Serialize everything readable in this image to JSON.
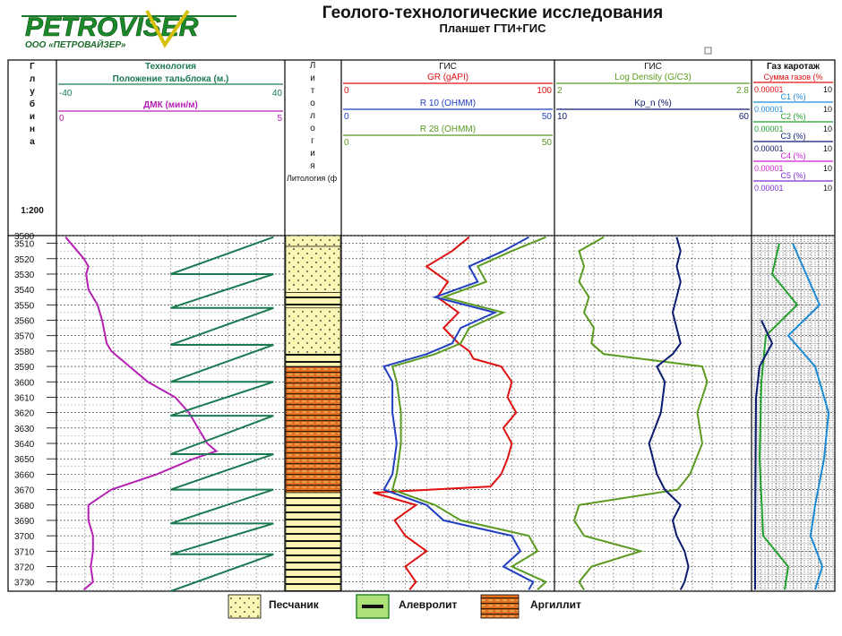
{
  "header": {
    "logo_text": "PETROVISER",
    "logo_sub": "ООО «ПЕТРОВАЙЗЕР»",
    "title": "Геолого-технологические исследования",
    "subtitle": "Планшет ГТИ+ГИС"
  },
  "columns": {
    "depth": {
      "letters": [
        "Г",
        "л",
        "у",
        "б",
        "и",
        "н",
        "а"
      ],
      "scale": "1:200"
    },
    "tech": {
      "group": "Технология",
      "curves": [
        {
          "name": "Положение тальблока (м.)",
          "min": "-40",
          "max": "40",
          "color": "#1b7a52"
        },
        {
          "name": "ДМК (мин/м)",
          "min": "0",
          "max": "5",
          "color": "#b320b3"
        }
      ]
    },
    "lith": {
      "letters": [
        "Л",
        "и",
        "т",
        "о",
        "л",
        "о",
        "г",
        "и",
        "я"
      ],
      "label": "Литология (ф"
    },
    "gis1": {
      "group": "ГИС",
      "curves": [
        {
          "name": "GR (gAPI)",
          "min": "0",
          "max": "100",
          "color": "#e01010"
        },
        {
          "name": "R 10 (OHMM)",
          "min": "0",
          "max": "50",
          "color": "#1f3fbf"
        },
        {
          "name": "R 28 (OHMM)",
          "min": "0",
          "max": "50",
          "color": "#5a9a20"
        }
      ]
    },
    "gis2": {
      "group": "ГИС",
      "curves": [
        {
          "name": "Log Density (G/C3)",
          "min": "2",
          "max": "2.8",
          "color": "#5a9a20"
        },
        {
          "name": "Kp_n (%)",
          "min": "10",
          "max": "60",
          "color": "#0a1a6e"
        }
      ]
    },
    "gas": {
      "group": "Газ каротаж",
      "curves": [
        {
          "name": "Сумма газов (%",
          "min": "0.00001",
          "max": "10",
          "color": "#e01010"
        },
        {
          "name": "C1 (%)",
          "min": "0.00001",
          "max": "10",
          "color": "#1a8ad6"
        },
        {
          "name": "C2 (%)",
          "min": "0.00001",
          "max": "10",
          "color": "#23a02d"
        },
        {
          "name": "C3 (%)",
          "min": "0.00001",
          "max": "10",
          "color": "#0a1a6e"
        },
        {
          "name": "C4 (%)",
          "min": "0.00001",
          "max": "10",
          "color": "#d01fd0"
        },
        {
          "name": "C5 (%)",
          "min": "0.00001",
          "max": "10",
          "color": "#7a2bd0"
        }
      ]
    }
  },
  "legend": [
    {
      "label": "Песчаник",
      "key": "sand"
    },
    {
      "label": "Алевролит",
      "key": "silt"
    },
    {
      "label": "Аргиллит",
      "key": "argil"
    }
  ],
  "chart_data": {
    "type": "line",
    "depth_range": [
      3505,
      3736
    ],
    "depth_ticks": [
      3510,
      3520,
      3530,
      3540,
      3550,
      3560,
      3570,
      3580,
      3590,
      3600,
      3610,
      3620,
      3630,
      3640,
      3650,
      3660,
      3670,
      3680,
      3690,
      3700,
      3710,
      3720,
      3730
    ],
    "lithology": [
      {
        "top": 3505,
        "bottom": 3512,
        "rock": "sand"
      },
      {
        "top": 3512,
        "bottom": 3542,
        "rock": "sand"
      },
      {
        "top": 3542,
        "bottom": 3552,
        "rock": "silt"
      },
      {
        "top": 3552,
        "bottom": 3582,
        "rock": "sand"
      },
      {
        "top": 3582,
        "bottom": 3590,
        "rock": "silt"
      },
      {
        "top": 3590,
        "bottom": 3672,
        "rock": "argil"
      },
      {
        "top": 3672,
        "bottom": 3736,
        "rock": "silt"
      }
    ],
    "series": [
      {
        "name": "ДМК (мин/м)",
        "track": "tech",
        "scale": [
          0,
          5
        ],
        "x": [
          3506,
          3520,
          3525,
          3530,
          3540,
          3550,
          3560,
          3575,
          3580,
          3590,
          3600,
          3610,
          3620,
          3630,
          3640,
          3645,
          3650,
          3660,
          3670,
          3680,
          3690,
          3700,
          3710,
          3720,
          3730,
          3735
        ],
        "y": [
          0.2,
          0.6,
          0.7,
          0.65,
          0.7,
          0.9,
          1.0,
          1.1,
          1.2,
          1.6,
          2.0,
          2.6,
          2.9,
          3.1,
          3.3,
          3.5,
          3.0,
          2.2,
          1.2,
          0.7,
          0.7,
          0.8,
          0.8,
          0.75,
          0.8,
          0.6
        ]
      },
      {
        "name": "Положение тальблока (м.)",
        "track": "tech",
        "scale": [
          -40,
          40
        ],
        "x": [
          3506,
          3530,
          3530,
          3552,
          3552,
          3576,
          3576,
          3600,
          3600,
          3622,
          3622,
          3647,
          3647,
          3670,
          3670,
          3692,
          3692,
          3712,
          3712,
          3736
        ],
        "y": [
          36,
          0,
          36,
          0,
          36,
          0,
          36,
          0,
          36,
          0,
          36,
          0,
          36,
          0,
          36,
          0,
          36,
          0,
          36,
          0
        ]
      },
      {
        "name": "GR (gAPI)",
        "track": "gis1",
        "scale": [
          0,
          100
        ],
        "x": [
          3506,
          3515,
          3525,
          3535,
          3545,
          3555,
          3565,
          3575,
          3580,
          3585,
          3590,
          3600,
          3610,
          3620,
          3630,
          3640,
          3650,
          3660,
          3668,
          3672,
          3680,
          3690,
          3700,
          3710,
          3720,
          3730,
          3735
        ],
        "y": [
          60,
          52,
          40,
          50,
          45,
          55,
          48,
          55,
          60,
          62,
          75,
          80,
          78,
          82,
          76,
          80,
          78,
          75,
          70,
          15,
          35,
          25,
          30,
          40,
          30,
          35,
          32
        ]
      },
      {
        "name": "R 10 (OHMM)",
        "track": "gis1",
        "scale": [
          0,
          50
        ],
        "x": [
          3506,
          3515,
          3525,
          3535,
          3545,
          3555,
          3565,
          3575,
          3582,
          3590,
          3600,
          3620,
          3640,
          3660,
          3670,
          3680,
          3690,
          3700,
          3710,
          3720,
          3730,
          3735
        ],
        "y": [
          44,
          38,
          30,
          32,
          22,
          36,
          28,
          26,
          20,
          10,
          12,
          12,
          13,
          12,
          10,
          20,
          24,
          40,
          42,
          38,
          45,
          44
        ]
      },
      {
        "name": "R 28 (OHMM)",
        "track": "gis1",
        "scale": [
          0,
          50
        ],
        "x": [
          3506,
          3515,
          3525,
          3535,
          3545,
          3555,
          3565,
          3575,
          3582,
          3590,
          3600,
          3620,
          3640,
          3660,
          3670,
          3680,
          3690,
          3700,
          3710,
          3720,
          3730,
          3735
        ],
        "y": [
          48,
          40,
          32,
          34,
          24,
          38,
          30,
          28,
          22,
          12,
          13,
          14,
          14,
          13,
          12,
          22,
          28,
          44,
          46,
          40,
          48,
          46
        ]
      },
      {
        "name": "Log Density (G/C3)",
        "track": "gis2",
        "scale": [
          2,
          2.8
        ],
        "x": [
          3506,
          3515,
          3525,
          3535,
          3545,
          3555,
          3565,
          3575,
          3582,
          3590,
          3600,
          3620,
          3640,
          3660,
          3670,
          3680,
          3690,
          3700,
          3710,
          3720,
          3730,
          3735
        ],
        "y": [
          2.2,
          2.1,
          2.12,
          2.1,
          2.14,
          2.12,
          2.16,
          2.15,
          2.2,
          2.6,
          2.62,
          2.58,
          2.6,
          2.55,
          2.5,
          2.1,
          2.08,
          2.12,
          2.35,
          2.15,
          2.1,
          2.12
        ]
      },
      {
        "name": "Kp_n (%)",
        "track": "gis2",
        "scale": [
          10,
          60
        ],
        "x": [
          3506,
          3515,
          3525,
          3535,
          3545,
          3555,
          3565,
          3575,
          3582,
          3590,
          3600,
          3620,
          3640,
          3660,
          3670,
          3680,
          3690,
          3700,
          3710,
          3720,
          3730,
          3735
        ],
        "y": [
          41,
          42,
          41,
          42,
          41,
          40,
          41,
          42,
          40,
          36,
          38,
          37,
          34,
          36,
          38,
          42,
          40,
          41,
          43,
          44,
          43,
          42
        ]
      }
    ]
  }
}
